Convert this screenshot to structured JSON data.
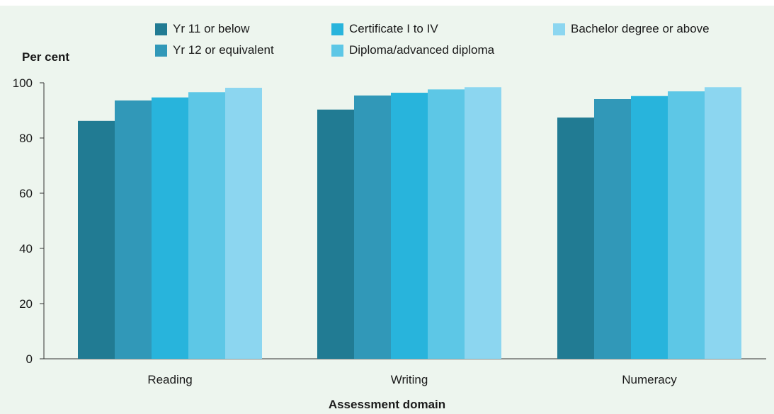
{
  "chart_data": {
    "type": "bar",
    "ylabel": "Per cent",
    "xlabel": "Assessment domain",
    "categories": [
      "Reading",
      "Writing",
      "Numeracy"
    ],
    "ylim": [
      0,
      100
    ],
    "yticks": [
      0,
      20,
      40,
      60,
      80,
      100
    ],
    "grid": false,
    "legend_position": "top",
    "series": [
      {
        "name": "Yr 11 or below",
        "color": "#217b93",
        "values": [
          86.2,
          90.3,
          87.4
        ]
      },
      {
        "name": "Yr 12 or equivalent",
        "color": "#3198b8",
        "values": [
          93.6,
          95.4,
          94.1
        ]
      },
      {
        "name": "Certificate I to IV",
        "color": "#28b4dc",
        "values": [
          94.7,
          96.4,
          95.2
        ]
      },
      {
        "name": "Diploma/advanced diploma",
        "color": "#5dc7e6",
        "values": [
          96.6,
          97.6,
          96.9
        ]
      },
      {
        "name": "Bachelor degree or above",
        "color": "#8cd6f0",
        "values": [
          98.2,
          98.4,
          98.4
        ]
      }
    ]
  }
}
